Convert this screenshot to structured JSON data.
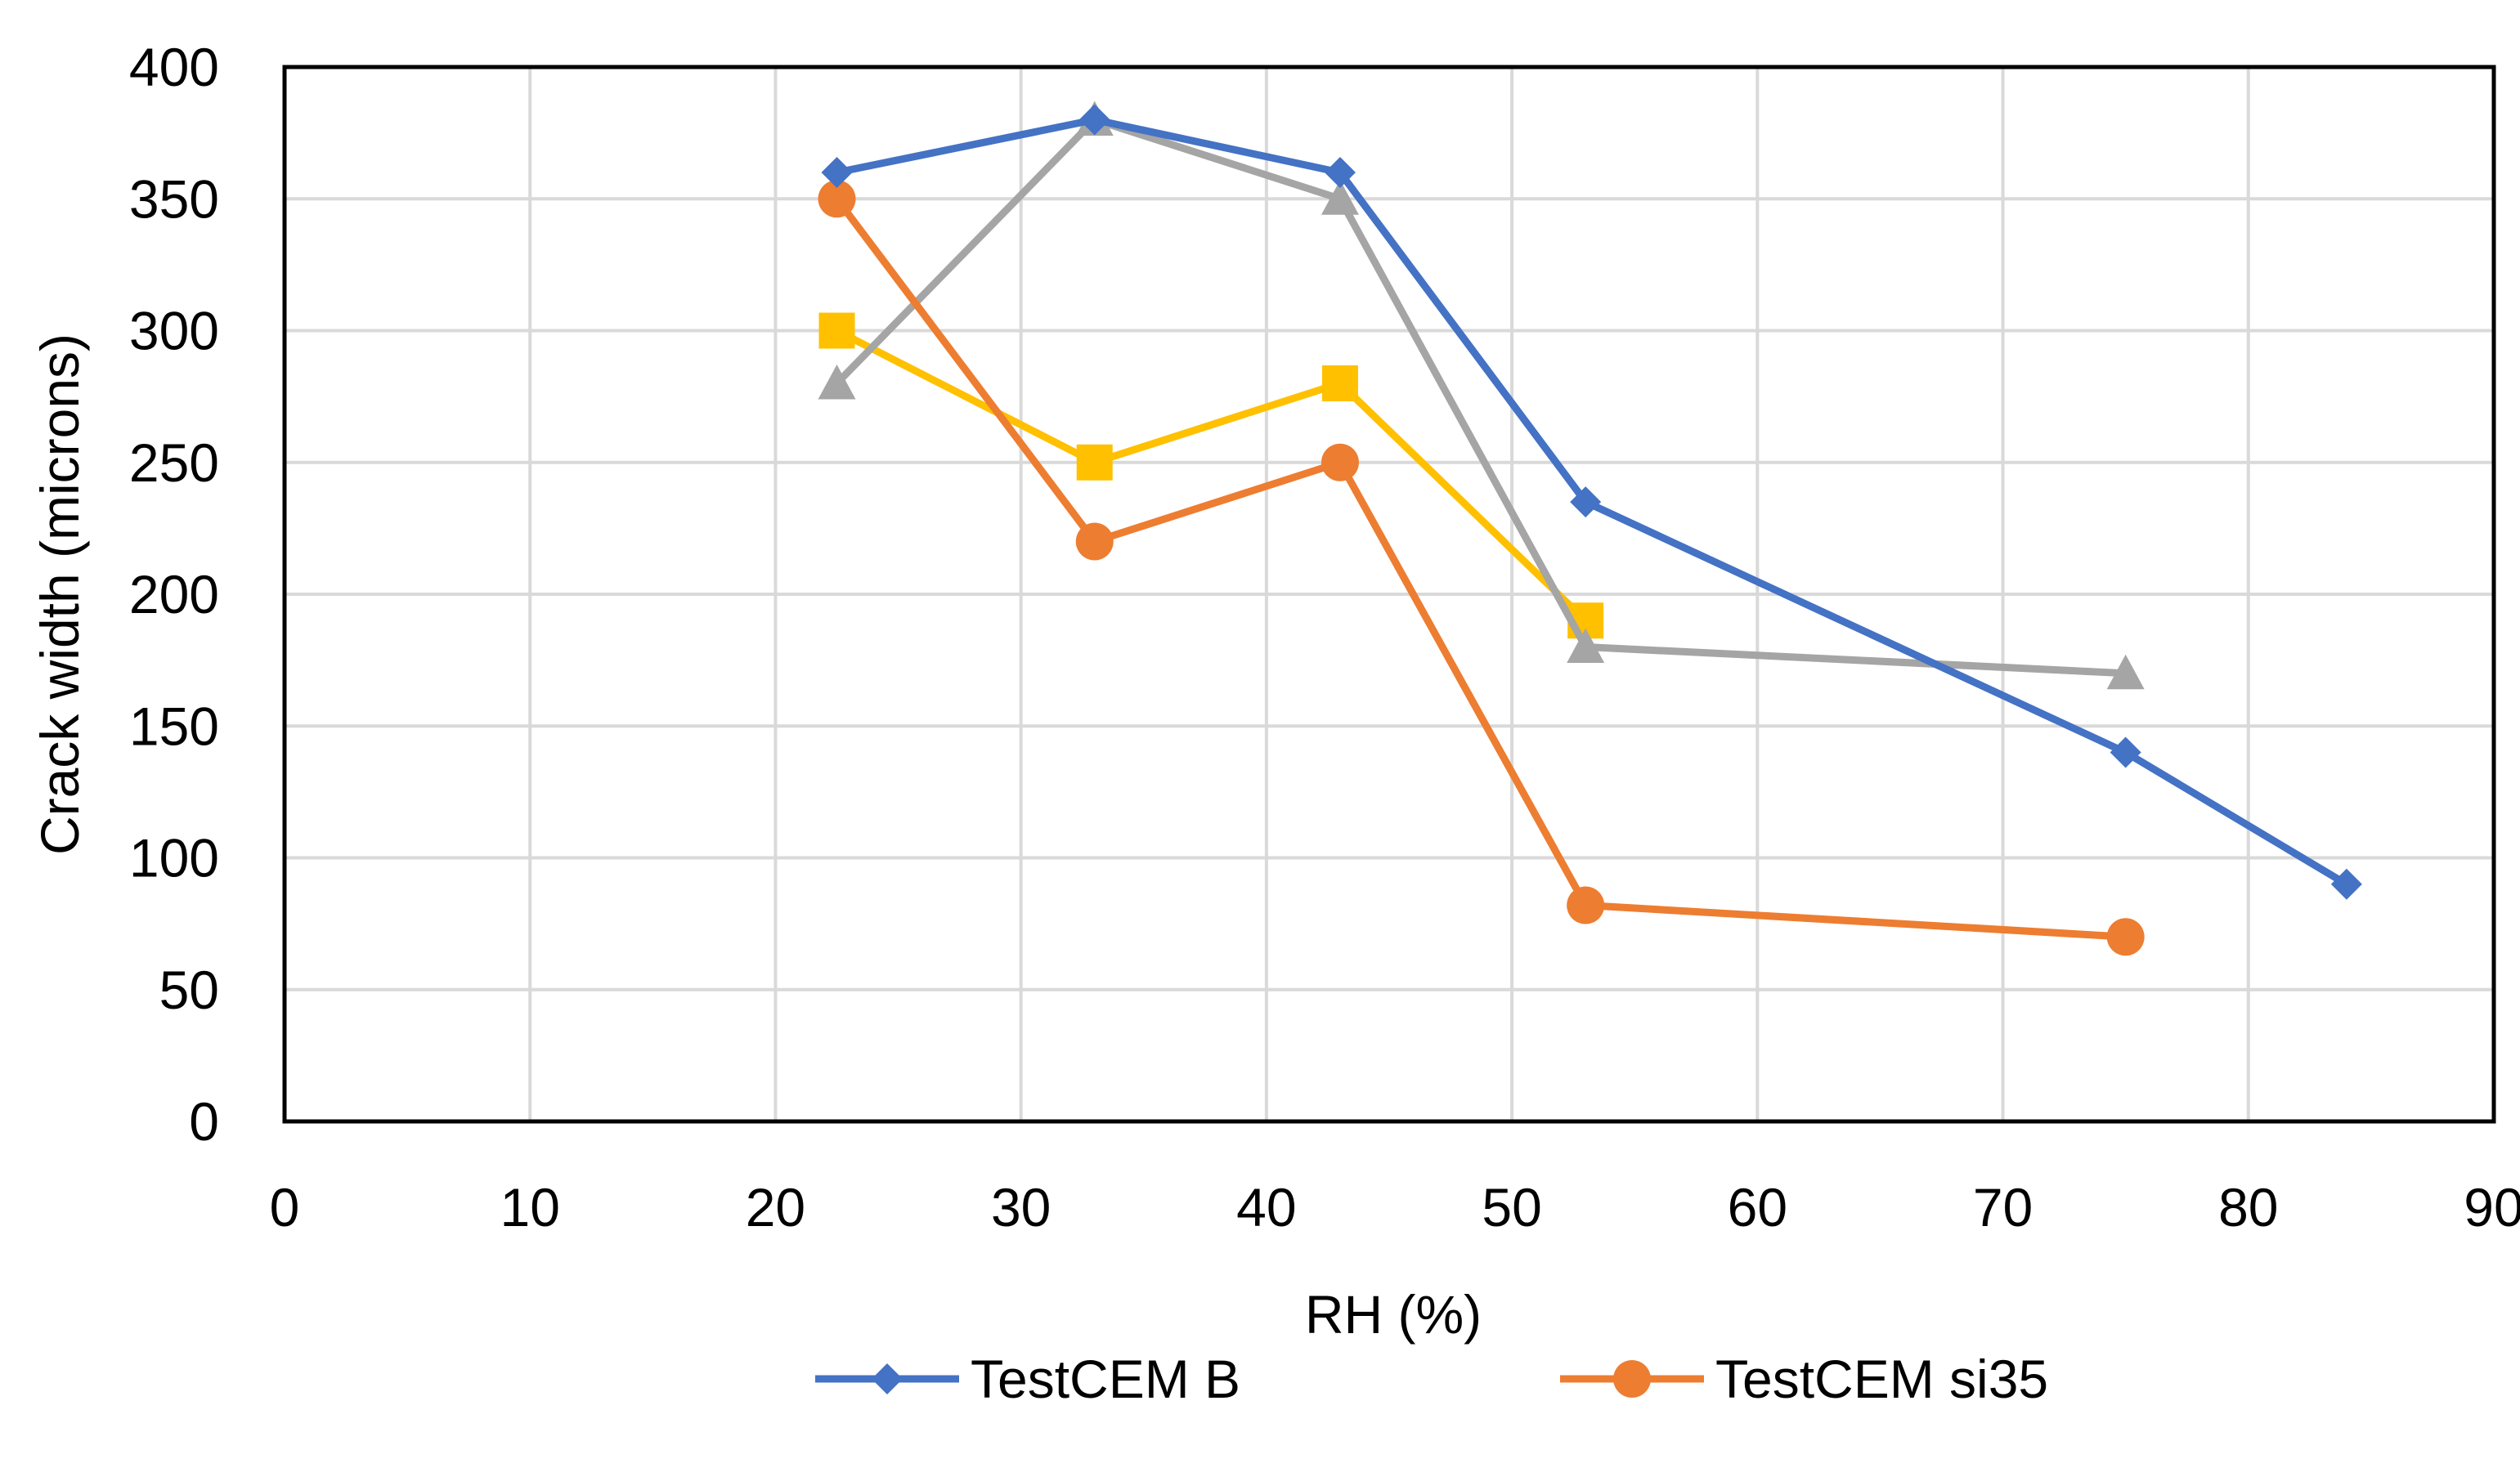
{
  "chart_data": {
    "type": "line",
    "title": "",
    "xlabel": "RH (%)",
    "ylabel": "Crack width (microns)",
    "xlim": [
      0,
      90
    ],
    "ylim": [
      0,
      400
    ],
    "x_ticks": [
      0,
      10,
      20,
      30,
      40,
      50,
      60,
      70,
      80,
      90
    ],
    "y_ticks": [
      0,
      50,
      100,
      150,
      200,
      250,
      300,
      350,
      400
    ],
    "grid": true,
    "legend_position": "bottom",
    "series": [
      {
        "name": "TestCEM B",
        "color": "#4472C4",
        "marker": "diamond",
        "in_legend": true,
        "x": [
          22.5,
          33,
          43,
          53,
          75,
          84
        ],
        "y": [
          360,
          380,
          360,
          235,
          140,
          90
        ]
      },
      {
        "name": "TestCEM si35",
        "color": "#ED7D31",
        "marker": "circle",
        "in_legend": true,
        "x": [
          22.5,
          33,
          43,
          53,
          75
        ],
        "y": [
          350,
          220,
          250,
          82,
          70
        ]
      },
      {
        "name": "",
        "color": "#A5A5A5",
        "marker": "triangle",
        "in_legend": false,
        "x": [
          22.5,
          33,
          43,
          53,
          75
        ],
        "y": [
          280,
          380,
          350,
          180,
          170
        ]
      },
      {
        "name": "",
        "color": "#FFC000",
        "marker": "square",
        "in_legend": false,
        "x": [
          22.5,
          33,
          43,
          53
        ],
        "y": [
          300,
          250,
          280,
          190
        ]
      }
    ]
  }
}
